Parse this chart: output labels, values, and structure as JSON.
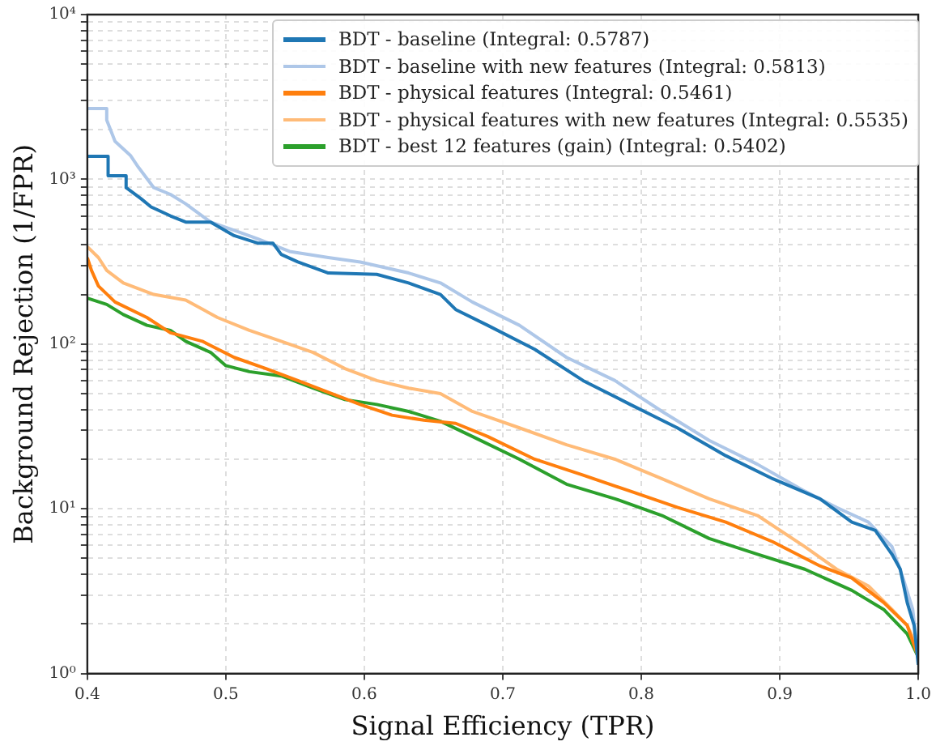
{
  "chart_data": {
    "type": "line",
    "xlabel": "Signal Efficiency (TPR)",
    "ylabel": "Background Rejection (1/FPR)",
    "log": "y",
    "grid": true,
    "legend": "top right",
    "line_style": "solid",
    "marker": "none",
    "xlim": [
      0.4,
      1.0
    ],
    "xticks": [
      0.4,
      0.5,
      0.6,
      0.7,
      0.8,
      0.9,
      {
        "value": 1.0,
        "label": "1.0"
      }
    ],
    "ylim": [
      1,
      10000
    ],
    "yticks": [
      {
        "value": 1,
        "label": "10⁰"
      },
      {
        "value": 2,
        "label": null
      },
      {
        "value": 3,
        "label": null
      },
      {
        "value": 4,
        "label": null
      },
      {
        "value": 5,
        "label": null
      },
      {
        "value": 6,
        "label": null
      },
      {
        "value": 7,
        "label": null
      },
      {
        "value": 8,
        "label": null
      },
      {
        "value": 9,
        "label": null
      },
      {
        "value": 10,
        "label": "10¹"
      },
      {
        "value": 20,
        "label": null
      },
      {
        "value": 30,
        "label": null
      },
      {
        "value": 40,
        "label": null
      },
      {
        "value": 50,
        "label": null
      },
      {
        "value": 60,
        "label": null
      },
      {
        "value": 70,
        "label": null
      },
      {
        "value": 80,
        "label": null
      },
      {
        "value": 90,
        "label": null
      },
      {
        "value": 100,
        "label": "10²"
      },
      {
        "value": 200,
        "label": null
      },
      {
        "value": 300,
        "label": null
      },
      {
        "value": 400,
        "label": null
      },
      {
        "value": 500,
        "label": null
      },
      {
        "value": 600,
        "label": null
      },
      {
        "value": 700,
        "label": null
      },
      {
        "value": 800,
        "label": null
      },
      {
        "value": 900,
        "label": null
      },
      {
        "value": 1000,
        "label": "10³"
      },
      {
        "value": 2000,
        "label": null
      },
      {
        "value": 3000,
        "label": null
      },
      {
        "value": 4000,
        "label": null
      },
      {
        "value": 5000,
        "label": null
      },
      {
        "value": 6000,
        "label": null
      },
      {
        "value": 7000,
        "label": null
      },
      {
        "value": 8000,
        "label": null
      },
      {
        "value": 9000,
        "label": null
      },
      {
        "value": 10000,
        "label": "10⁴"
      }
    ],
    "series": [
      {
        "name": "BDT - baseline (Integral: 0.5787)",
        "color": "#1f77b4",
        "x": [
          0.4,
          0.415,
          0.415,
          0.428,
          0.428,
          0.439,
          0.446,
          0.46,
          0.471,
          0.489,
          0.506,
          0.523,
          0.534,
          0.54,
          0.552,
          0.574,
          0.609,
          0.632,
          0.655,
          0.666,
          0.689,
          0.723,
          0.758,
          0.792,
          0.826,
          0.861,
          0.895,
          0.929,
          0.952,
          0.969,
          0.981,
          0.987,
          0.992,
          0.997,
          1.0
        ],
        "values": [
          1380,
          1380,
          1050,
          1050,
          890,
          760,
          680,
          600,
          550,
          550,
          455,
          410,
          410,
          350,
          315,
          270,
          265,
          235,
          200,
          162,
          130,
          93,
          60,
          43,
          31,
          21,
          15.2,
          11.5,
          8.3,
          7.4,
          5.3,
          4.3,
          2.7,
          1.96,
          1.13
        ]
      },
      {
        "name": "BDT - baseline with new features (Integral: 0.5813)",
        "color": "#aec7e8",
        "x": [
          0.4,
          0.414,
          0.414,
          0.42,
          0.431,
          0.437,
          0.448,
          0.46,
          0.471,
          0.489,
          0.506,
          0.523,
          0.546,
          0.574,
          0.597,
          0.632,
          0.655,
          0.678,
          0.712,
          0.746,
          0.781,
          0.815,
          0.849,
          0.884,
          0.918,
          0.941,
          0.964,
          0.981,
          0.989,
          0.996,
          1.0
        ],
        "values": [
          2690,
          2690,
          2290,
          1700,
          1400,
          1180,
          890,
          810,
          710,
          550,
          490,
          435,
          365,
          335,
          315,
          270,
          235,
          180,
          130,
          83,
          60,
          39,
          26,
          18.6,
          12.8,
          10.2,
          8.3,
          5.9,
          3.8,
          2.45,
          1.26
        ]
      },
      {
        "name": "BDT - physical features (Integral: 0.5461)",
        "color": "#ff7f0e",
        "x": [
          0.4,
          0.403,
          0.408,
          0.42,
          0.443,
          0.46,
          0.483,
          0.506,
          0.529,
          0.552,
          0.574,
          0.597,
          0.62,
          0.643,
          0.666,
          0.689,
          0.723,
          0.758,
          0.792,
          0.826,
          0.861,
          0.895,
          0.929,
          0.952,
          0.975,
          0.992,
          1.0
        ],
        "values": [
          335,
          280,
          225,
          180,
          145,
          117,
          104,
          83,
          71,
          60,
          51,
          43,
          37,
          34.5,
          33,
          27.5,
          20,
          16,
          12.8,
          10.2,
          8.3,
          6.3,
          4.5,
          3.8,
          2.7,
          1.96,
          1.26
        ]
      },
      {
        "name": "BDT - physical features with new features (Integral: 0.5535)",
        "color": "#ffbb78",
        "x": [
          0.4,
          0.408,
          0.414,
          0.426,
          0.448,
          0.471,
          0.494,
          0.517,
          0.54,
          0.563,
          0.586,
          0.609,
          0.632,
          0.655,
          0.678,
          0.712,
          0.746,
          0.781,
          0.815,
          0.849,
          0.884,
          0.918,
          0.941,
          0.964,
          0.981,
          0.992,
          1.0
        ],
        "values": [
          390,
          335,
          280,
          235,
          200,
          185,
          145,
          121,
          104,
          89,
          71,
          60,
          54,
          50,
          39,
          31,
          24.5,
          20,
          15.2,
          11.5,
          9.1,
          5.9,
          4.3,
          3.4,
          2.45,
          1.96,
          1.41
        ]
      },
      {
        "name": "BDT - best 12 features (gain) (Integral: 0.5402)",
        "color": "#2ca02c",
        "x": [
          0.4,
          0.414,
          0.426,
          0.443,
          0.46,
          0.471,
          0.489,
          0.5,
          0.517,
          0.54,
          0.563,
          0.586,
          0.609,
          0.632,
          0.655,
          0.678,
          0.712,
          0.746,
          0.781,
          0.815,
          0.849,
          0.884,
          0.918,
          0.952,
          0.975,
          0.992,
          1.0
        ],
        "values": [
          190,
          174,
          151,
          130,
          121,
          104,
          89,
          74,
          68,
          64,
          54,
          46,
          43,
          39,
          34,
          27.5,
          20,
          14.1,
          11.5,
          9.1,
          6.6,
          5.3,
          4.3,
          3.2,
          2.45,
          1.74,
          1.26
        ]
      }
    ]
  }
}
